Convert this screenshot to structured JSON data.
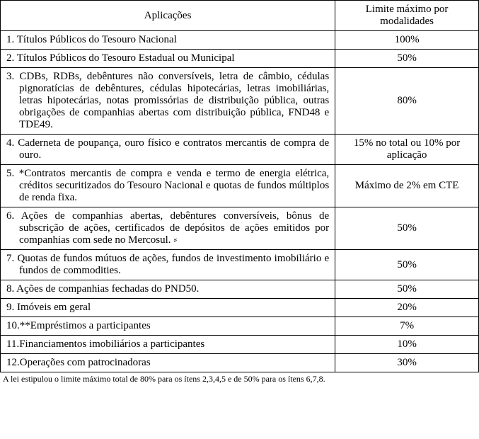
{
  "header": {
    "col1": "Aplicações",
    "col2": "Limite máximo por modalidades"
  },
  "rows": [
    {
      "app": "1. Títulos Públicos do Tesouro Nacional",
      "lim": "100%"
    },
    {
      "app": "2. Títulos Públicos do Tesouro Estadual ou Municipal",
      "lim": "50%"
    },
    {
      "app": "3. CDBs, RDBs, debêntures não conversíveis, letra de câmbio, cédulas pignoratícias de debêntures, cédulas hipotecárias, letras imobiliárias, letras hipotecárias, notas promissórias de distribuição pública, outras obrigações de companhias abertas com distribuição pública, FND48 e TDE49.",
      "lim": "80%"
    },
    {
      "app": "4. Caderneta de poupança, ouro físico e contratos mercantis de compra de ouro.",
      "lim": "15% no total ou 10% por aplicação"
    },
    {
      "app": "5. *Contratos mercantis de compra e venda e termo de energia elétrica, créditos securitizados do Tesouro Nacional e quotas de fundos múltiplos de renda fixa.",
      "lim": "Máximo de 2% em CTE"
    },
    {
      "app": "6. Ações de companhias abertas, debêntures conversíveis, bônus de subscrição de ações, certificados de depósitos de ações emitidos por companhias com sede no Mercosul.  ⸗",
      "lim": "50%"
    },
    {
      "app": "7. Quotas de fundos mútuos de ações, fundos de investimento imobiliário e fundos de commodities.",
      "lim": "50%"
    },
    {
      "app": "8. Ações de companhias fechadas do PND50.",
      "lim": "50%"
    },
    {
      "app": "9. Imóveis em geral",
      "lim": "20%"
    },
    {
      "app": "10.**Empréstimos a participantes",
      "lim": "7%"
    },
    {
      "app": "11.Financiamentos imobiliários a participantes",
      "lim": "10%"
    },
    {
      "app": "12.Operações com patrocinadoras",
      "lim": "30%"
    }
  ],
  "footnote": "A lei estipulou o limite máximo total de 80% para os ítens 2,3,4,5 e de 50% para os ítens 6,7,8."
}
